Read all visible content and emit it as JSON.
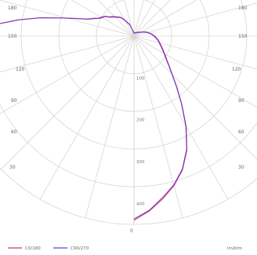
{
  "chart_data": {
    "type": "polar-line",
    "angle_labels": [
      "180",
      "150",
      "120",
      "90",
      "60",
      "30",
      "0"
    ],
    "ring_labels": [
      "400",
      "300",
      "200",
      "100"
    ],
    "r_max": 450,
    "grid": true,
    "legend_placement": "bottom-left",
    "series": [
      {
        "name": "C0/180",
        "color": "#d4306a",
        "points": [
          [
            0,
            440
          ],
          [
            5,
            420
          ],
          [
            10,
            395
          ],
          [
            15,
            370
          ],
          [
            20,
            340
          ],
          [
            25,
            300
          ],
          [
            30,
            250
          ],
          [
            35,
            200
          ],
          [
            40,
            160
          ],
          [
            45,
            130
          ],
          [
            50,
            110
          ],
          [
            55,
            95
          ],
          [
            60,
            85
          ],
          [
            70,
            70
          ],
          [
            80,
            60
          ],
          [
            90,
            50
          ],
          [
            100,
            40
          ],
          [
            110,
            30
          ],
          [
            120,
            20
          ],
          [
            130,
            15
          ],
          [
            140,
            12
          ],
          [
            150,
            10
          ],
          [
            160,
            9
          ],
          [
            170,
            8
          ],
          [
            180,
            8
          ],
          [
            200,
            30
          ],
          [
            210,
            45
          ],
          [
            215,
            55
          ],
          [
            220,
            60
          ],
          [
            225,
            66
          ],
          [
            228,
            70
          ],
          [
            232,
            75
          ],
          [
            236,
            85
          ],
          [
            240,
            90
          ],
          [
            243,
            95
          ],
          [
            246,
            105
          ],
          [
            250,
            120
          ],
          [
            253,
            145
          ],
          [
            256,
            180
          ],
          [
            259,
            230
          ],
          [
            262,
            280
          ],
          [
            265,
            330
          ],
          [
            268,
            380
          ],
          [
            270,
            415
          ],
          [
            272,
            445
          ]
        ]
      },
      {
        "name": "C90/270",
        "color": "#6a3fd0",
        "points": [
          [
            0,
            437
          ],
          [
            5,
            418
          ],
          [
            10,
            392
          ],
          [
            15,
            368
          ],
          [
            20,
            338
          ],
          [
            25,
            298
          ],
          [
            30,
            248
          ],
          [
            35,
            198
          ],
          [
            40,
            158
          ],
          [
            45,
            128
          ],
          [
            50,
            108
          ],
          [
            55,
            93
          ],
          [
            60,
            83
          ],
          [
            70,
            68
          ],
          [
            80,
            58
          ],
          [
            90,
            48
          ],
          [
            100,
            38
          ],
          [
            110,
            28
          ],
          [
            120,
            18
          ],
          [
            130,
            13
          ],
          [
            140,
            10
          ],
          [
            150,
            9
          ],
          [
            160,
            8
          ],
          [
            170,
            7
          ],
          [
            180,
            7
          ],
          [
            200,
            28
          ],
          [
            210,
            43
          ],
          [
            215,
            53
          ],
          [
            220,
            58
          ],
          [
            225,
            64
          ],
          [
            228,
            68
          ],
          [
            232,
            73
          ],
          [
            236,
            83
          ],
          [
            240,
            88
          ],
          [
            243,
            93
          ],
          [
            246,
            103
          ],
          [
            250,
            118
          ],
          [
            253,
            143
          ],
          [
            256,
            178
          ],
          [
            259,
            228
          ],
          [
            262,
            278
          ],
          [
            265,
            328
          ],
          [
            268,
            378
          ],
          [
            270,
            412
          ],
          [
            272,
            442
          ]
        ]
      }
    ],
    "unit_label": "lm/klm"
  }
}
